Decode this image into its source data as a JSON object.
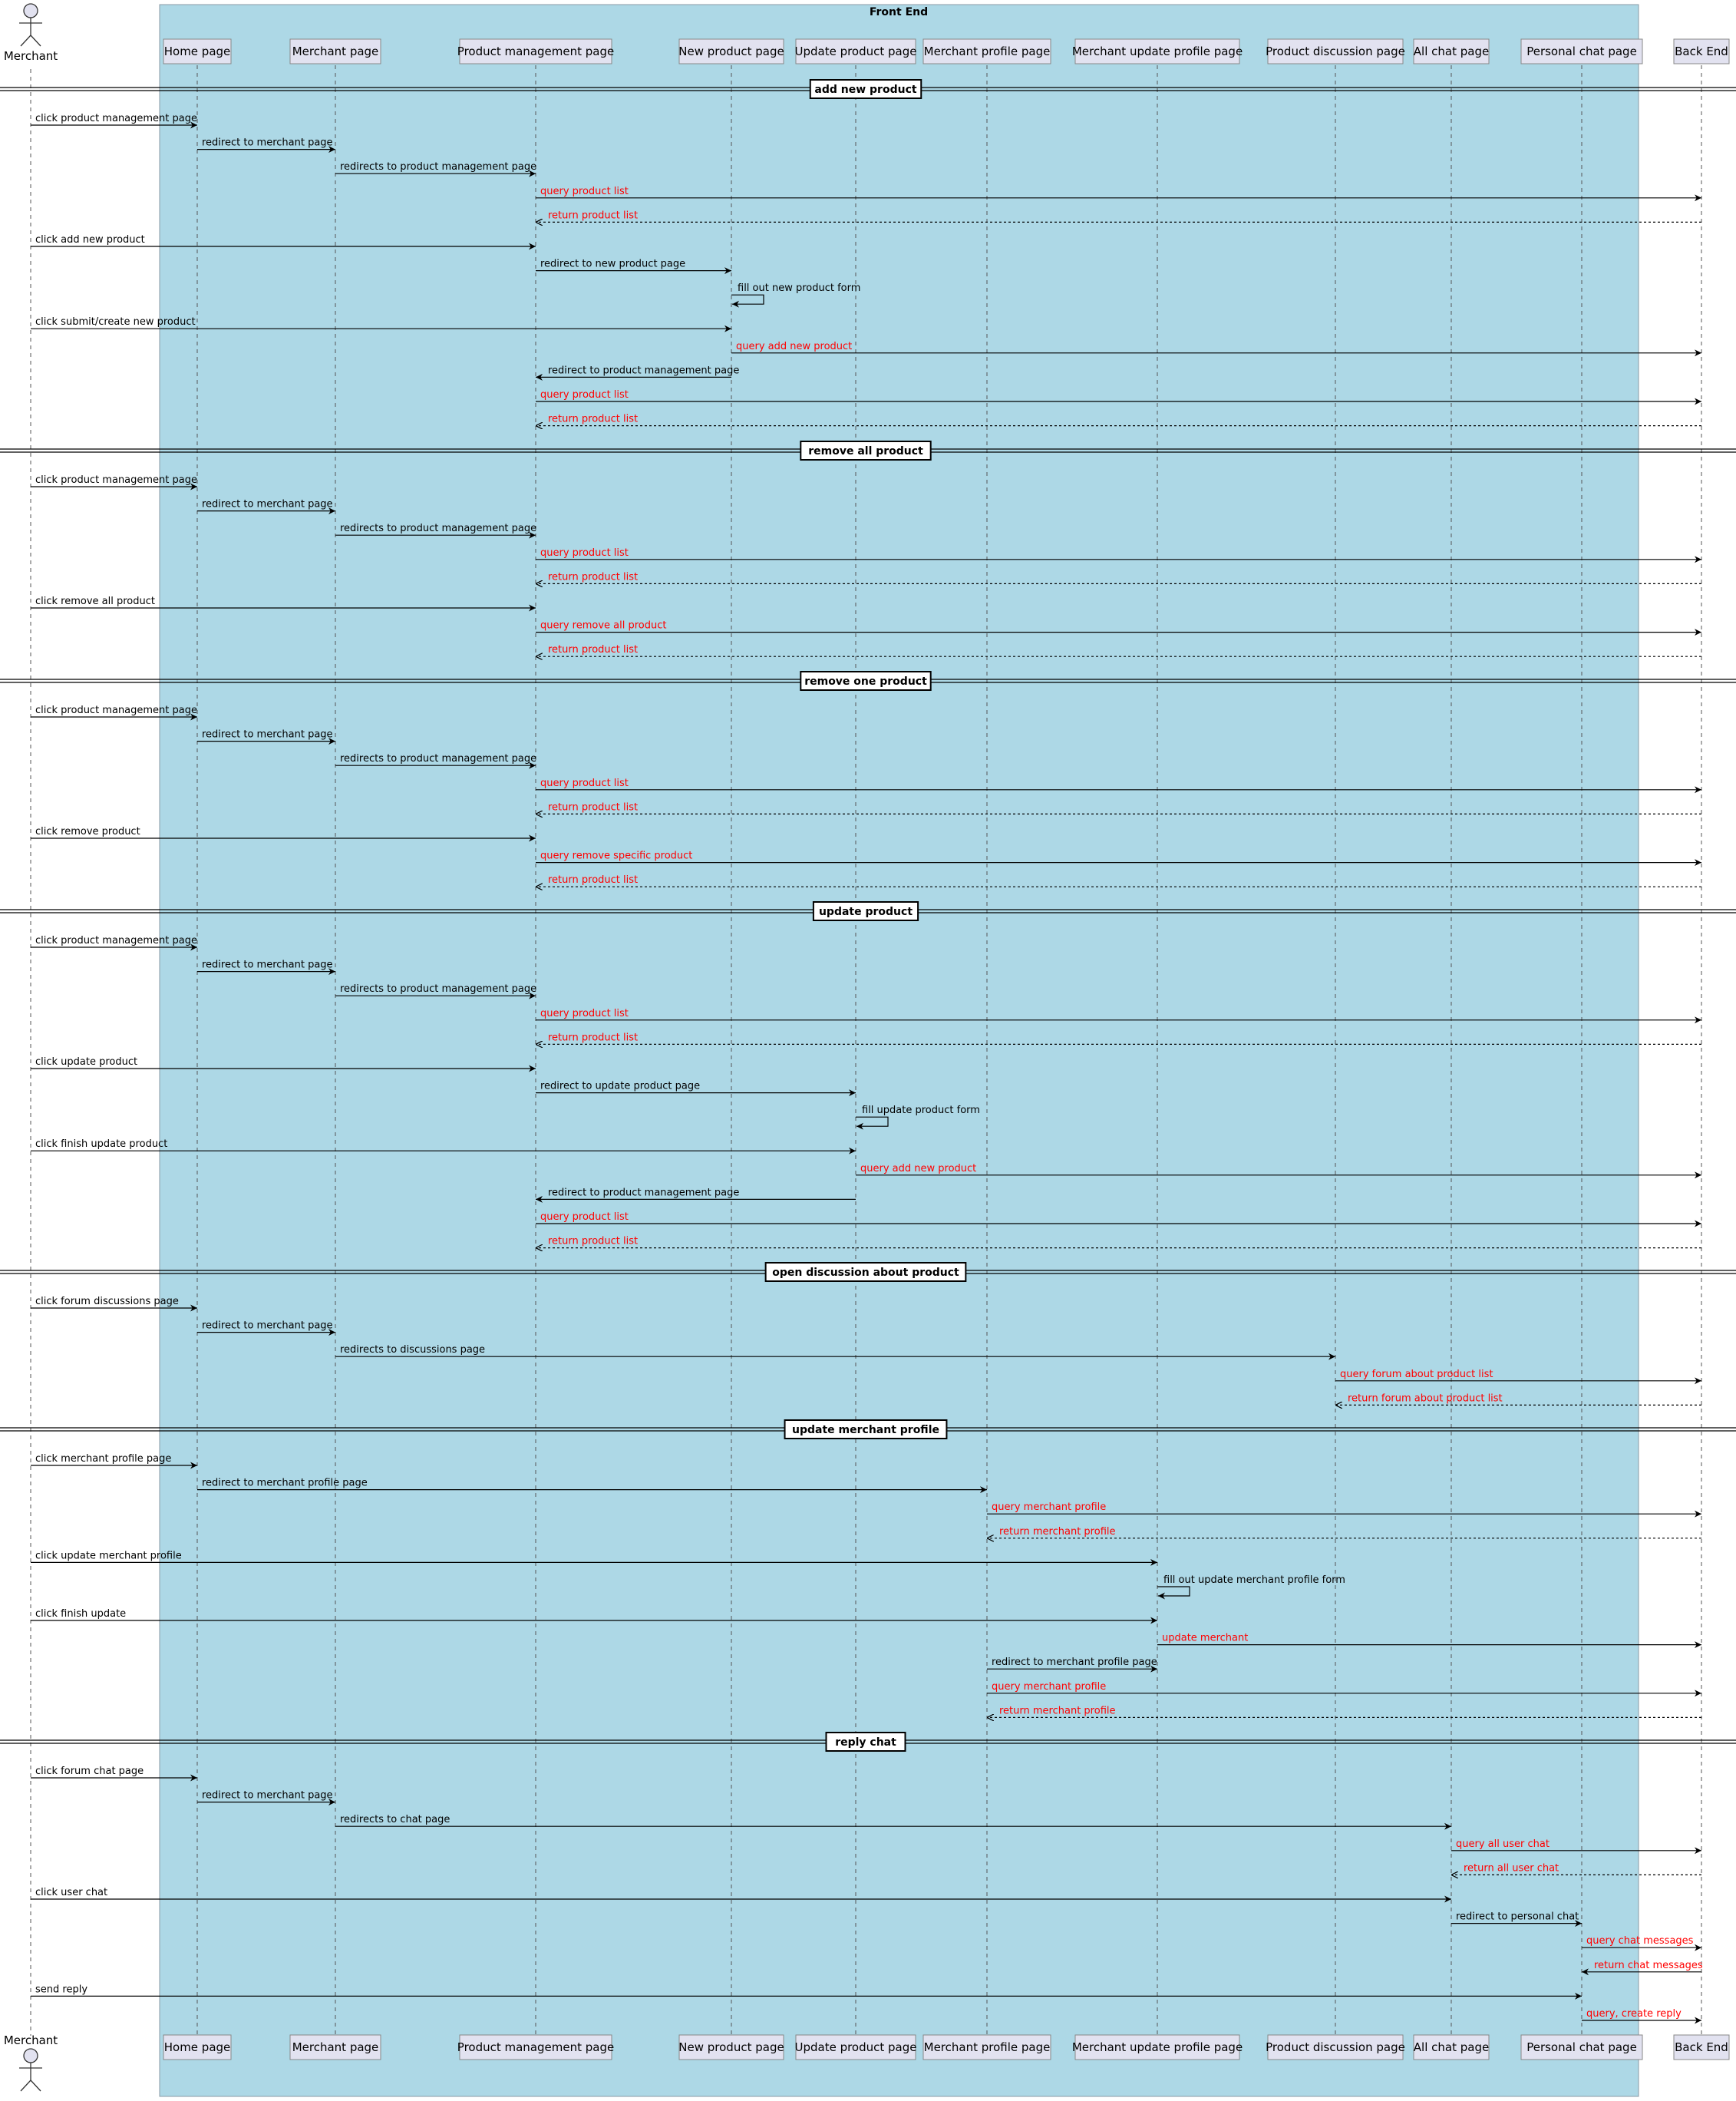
{
  "diagram": {
    "boundary_title": "Front End",
    "actor": "Merchant",
    "participants": [
      "Home page",
      "Merchant page",
      "Product management page",
      "New product page",
      "Update product page",
      "Merchant profile page",
      "Merchant update profile page",
      "Product discussion page",
      "All chat page",
      "Personal chat page",
      "Back End"
    ],
    "colors": {
      "boundary_fill": "#ADD8E6",
      "participant_fill": "#E2E2F0",
      "query_text": "#FF0000",
      "normal_text": "#000000"
    },
    "sections": [
      {
        "title": "add new product",
        "messages": [
          {
            "from": 0,
            "to": 1,
            "text": "click product management page",
            "kind": "sync",
            "color": "black"
          },
          {
            "from": 1,
            "to": 2,
            "text": "redirect to merchant page",
            "kind": "sync",
            "color": "black"
          },
          {
            "from": 2,
            "to": 3,
            "text": "redirects to product management page",
            "kind": "sync",
            "color": "black"
          },
          {
            "from": 3,
            "to": 11,
            "text": "query product list",
            "kind": "sync",
            "color": "red"
          },
          {
            "from": 11,
            "to": 3,
            "text": "return product list",
            "kind": "return",
            "color": "red"
          },
          {
            "from": 0,
            "to": 3,
            "text": "click add new product",
            "kind": "sync",
            "color": "black"
          },
          {
            "from": 3,
            "to": 4,
            "text": "redirect to new product page",
            "kind": "sync",
            "color": "black"
          },
          {
            "from": 4,
            "to": 4,
            "text": "fill out new product form",
            "kind": "self",
            "color": "black"
          },
          {
            "from": 0,
            "to": 4,
            "text": "click submit/create new product",
            "kind": "sync",
            "color": "black"
          },
          {
            "from": 4,
            "to": 11,
            "text": "query add new product",
            "kind": "sync",
            "color": "red"
          },
          {
            "from": 4,
            "to": 3,
            "text": "redirect to product management page",
            "kind": "sync",
            "color": "black"
          },
          {
            "from": 3,
            "to": 11,
            "text": "query product list",
            "kind": "sync",
            "color": "red"
          },
          {
            "from": 11,
            "to": 3,
            "text": "return product list",
            "kind": "return",
            "color": "red"
          }
        ]
      },
      {
        "title": "remove all product",
        "messages": [
          {
            "from": 0,
            "to": 1,
            "text": "click product management page",
            "kind": "sync",
            "color": "black"
          },
          {
            "from": 1,
            "to": 2,
            "text": "redirect to merchant page",
            "kind": "sync",
            "color": "black"
          },
          {
            "from": 2,
            "to": 3,
            "text": "redirects to product management page",
            "kind": "sync",
            "color": "black"
          },
          {
            "from": 3,
            "to": 11,
            "text": "query product list",
            "kind": "sync",
            "color": "red"
          },
          {
            "from": 11,
            "to": 3,
            "text": "return product list",
            "kind": "return",
            "color": "red"
          },
          {
            "from": 0,
            "to": 3,
            "text": "click remove all product",
            "kind": "sync",
            "color": "black"
          },
          {
            "from": 3,
            "to": 11,
            "text": "query remove all product",
            "kind": "sync",
            "color": "red"
          },
          {
            "from": 11,
            "to": 3,
            "text": "return product list",
            "kind": "return",
            "color": "red"
          }
        ]
      },
      {
        "title": "remove one product",
        "messages": [
          {
            "from": 0,
            "to": 1,
            "text": "click product management page",
            "kind": "sync",
            "color": "black"
          },
          {
            "from": 1,
            "to": 2,
            "text": "redirect to merchant page",
            "kind": "sync",
            "color": "black"
          },
          {
            "from": 2,
            "to": 3,
            "text": "redirects to product management page",
            "kind": "sync",
            "color": "black"
          },
          {
            "from": 3,
            "to": 11,
            "text": "query product list",
            "kind": "sync",
            "color": "red"
          },
          {
            "from": 11,
            "to": 3,
            "text": "return product list",
            "kind": "return",
            "color": "red"
          },
          {
            "from": 0,
            "to": 3,
            "text": "click remove product",
            "kind": "sync",
            "color": "black"
          },
          {
            "from": 3,
            "to": 11,
            "text": "query remove specific product",
            "kind": "sync",
            "color": "red"
          },
          {
            "from": 11,
            "to": 3,
            "text": "return product list",
            "kind": "return",
            "color": "red"
          }
        ]
      },
      {
        "title": "update product",
        "messages": [
          {
            "from": 0,
            "to": 1,
            "text": "click product management page",
            "kind": "sync",
            "color": "black"
          },
          {
            "from": 1,
            "to": 2,
            "text": "redirect to merchant page",
            "kind": "sync",
            "color": "black"
          },
          {
            "from": 2,
            "to": 3,
            "text": "redirects to product management page",
            "kind": "sync",
            "color": "black"
          },
          {
            "from": 3,
            "to": 11,
            "text": "query product list",
            "kind": "sync",
            "color": "red"
          },
          {
            "from": 11,
            "to": 3,
            "text": "return product list",
            "kind": "return",
            "color": "red"
          },
          {
            "from": 0,
            "to": 3,
            "text": "click update product",
            "kind": "sync",
            "color": "black"
          },
          {
            "from": 3,
            "to": 5,
            "text": "redirect to update product page",
            "kind": "sync",
            "color": "black"
          },
          {
            "from": 5,
            "to": 5,
            "text": "fill update product form",
            "kind": "self",
            "color": "black"
          },
          {
            "from": 0,
            "to": 5,
            "text": "click finish update product",
            "kind": "sync",
            "color": "black"
          },
          {
            "from": 5,
            "to": 11,
            "text": "query add new product",
            "kind": "sync",
            "color": "red"
          },
          {
            "from": 5,
            "to": 3,
            "text": "redirect to product management page",
            "kind": "sync",
            "color": "black"
          },
          {
            "from": 3,
            "to": 11,
            "text": "query product list",
            "kind": "sync",
            "color": "red"
          },
          {
            "from": 11,
            "to": 3,
            "text": "return product list",
            "kind": "return",
            "color": "red"
          }
        ]
      },
      {
        "title": "open discussion about product",
        "messages": [
          {
            "from": 0,
            "to": 1,
            "text": "click forum discussions page",
            "kind": "sync",
            "color": "black"
          },
          {
            "from": 1,
            "to": 2,
            "text": "redirect to merchant page",
            "kind": "sync",
            "color": "black"
          },
          {
            "from": 2,
            "to": 8,
            "text": "redirects to discussions page",
            "kind": "sync",
            "color": "black"
          },
          {
            "from": 8,
            "to": 11,
            "text": "query forum about product list",
            "kind": "sync",
            "color": "red"
          },
          {
            "from": 11,
            "to": 8,
            "text": "return forum about product list",
            "kind": "return",
            "color": "red"
          }
        ]
      },
      {
        "title": "update merchant profile",
        "messages": [
          {
            "from": 0,
            "to": 1,
            "text": "click merchant profile page",
            "kind": "sync",
            "color": "black"
          },
          {
            "from": 1,
            "to": 6,
            "text": "redirect to merchant profile page",
            "kind": "sync",
            "color": "black"
          },
          {
            "from": 6,
            "to": 11,
            "text": "query merchant profile",
            "kind": "sync",
            "color": "red"
          },
          {
            "from": 11,
            "to": 6,
            "text": "return merchant profile",
            "kind": "return",
            "color": "red"
          },
          {
            "from": 0,
            "to": 7,
            "text": "click update merchant profile",
            "kind": "sync",
            "color": "black"
          },
          {
            "from": 7,
            "to": 7,
            "text": "fill out update merchant profile form",
            "kind": "self",
            "color": "black"
          },
          {
            "from": 0,
            "to": 7,
            "text": "click finish update",
            "kind": "sync",
            "color": "black"
          },
          {
            "from": 7,
            "to": 11,
            "text": "update merchant",
            "kind": "sync",
            "color": "red"
          },
          {
            "from": 6,
            "to": 7,
            "text": "redirect to merchant profile page",
            "kind": "sync",
            "color": "black"
          },
          {
            "from": 6,
            "to": 11,
            "text": "query merchant profile",
            "kind": "sync",
            "color": "red"
          },
          {
            "from": 11,
            "to": 6,
            "text": "return merchant profile",
            "kind": "return",
            "color": "red"
          }
        ]
      },
      {
        "title": "reply chat",
        "messages": [
          {
            "from": 0,
            "to": 1,
            "text": "click forum chat page",
            "kind": "sync",
            "color": "black"
          },
          {
            "from": 1,
            "to": 2,
            "text": "redirect to merchant page",
            "kind": "sync",
            "color": "black"
          },
          {
            "from": 2,
            "to": 9,
            "text": "redirects to chat page",
            "kind": "sync",
            "color": "black"
          },
          {
            "from": 9,
            "to": 11,
            "text": "query all user chat",
            "kind": "sync",
            "color": "red"
          },
          {
            "from": 11,
            "to": 9,
            "text": "return all user chat",
            "kind": "return",
            "color": "red"
          },
          {
            "from": 0,
            "to": 9,
            "text": "click user chat",
            "kind": "sync",
            "color": "black"
          },
          {
            "from": 9,
            "to": 10,
            "text": "redirect to personal chat",
            "kind": "sync",
            "color": "black"
          },
          {
            "from": 10,
            "to": 11,
            "text": "query chat messages",
            "kind": "sync",
            "color": "red"
          },
          {
            "from": 11,
            "to": 10,
            "text": "return chat messages",
            "kind": "sync",
            "color": "red"
          },
          {
            "from": 0,
            "to": 10,
            "text": "send reply",
            "kind": "sync",
            "color": "black"
          },
          {
            "from": 10,
            "to": 11,
            "text": "query, create reply",
            "kind": "sync",
            "color": "red"
          }
        ]
      }
    ]
  }
}
